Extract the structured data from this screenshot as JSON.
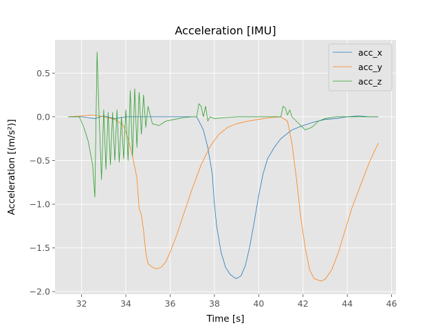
{
  "chart_data": {
    "type": "line",
    "title": "Acceleration [IMU]",
    "xlabel": "Time [s]",
    "ylabel": "Acceleration [(m/s²)]",
    "xlim": [
      30.8,
      46.2
    ],
    "ylim": [
      -2.03,
      0.88
    ],
    "x_ticks": [
      32,
      34,
      36,
      38,
      40,
      42,
      44,
      46
    ],
    "x_tick_labels": [
      "32",
      "34",
      "36",
      "38",
      "40",
      "42",
      "44",
      "46"
    ],
    "y_ticks": [
      0.5,
      0.0,
      -0.5,
      -1.0,
      -1.5,
      -2.0
    ],
    "y_tick_labels": [
      "0.5",
      "0.0",
      "−0.5",
      "−1.0",
      "−1.5",
      "−2.0"
    ],
    "grid": true,
    "legend_position": "top-right",
    "series": [
      {
        "name": "acc_x",
        "color": "#1f77b4",
        "points": [
          [
            31.4,
            0.0
          ],
          [
            32.0,
            0.0
          ],
          [
            32.6,
            -0.02
          ],
          [
            33.0,
            0.01
          ],
          [
            33.5,
            -0.02
          ],
          [
            34.0,
            0.0
          ],
          [
            35.0,
            0.0
          ],
          [
            36.0,
            0.0
          ],
          [
            36.8,
            0.0
          ],
          [
            37.2,
            0.0
          ],
          [
            37.5,
            -0.15
          ],
          [
            37.7,
            -0.35
          ],
          [
            37.9,
            -0.65
          ],
          [
            38.0,
            -1.0
          ],
          [
            38.1,
            -1.25
          ],
          [
            38.3,
            -1.55
          ],
          [
            38.5,
            -1.72
          ],
          [
            38.7,
            -1.8
          ],
          [
            38.9,
            -1.84
          ],
          [
            39.0,
            -1.85
          ],
          [
            39.2,
            -1.82
          ],
          [
            39.4,
            -1.7
          ],
          [
            39.6,
            -1.48
          ],
          [
            39.8,
            -1.2
          ],
          [
            40.0,
            -0.9
          ],
          [
            40.2,
            -0.65
          ],
          [
            40.4,
            -0.48
          ],
          [
            40.7,
            -0.35
          ],
          [
            41.0,
            -0.25
          ],
          [
            41.5,
            -0.15
          ],
          [
            42.0,
            -0.1
          ],
          [
            42.5,
            -0.06
          ],
          [
            43.0,
            -0.03
          ],
          [
            43.5,
            -0.02
          ],
          [
            44.0,
            0.0
          ],
          [
            44.5,
            0.01
          ],
          [
            45.0,
            0.0
          ],
          [
            45.4,
            0.0
          ]
        ]
      },
      {
        "name": "acc_y",
        "color": "#ff7f0e",
        "points": [
          [
            31.4,
            0.0
          ],
          [
            32.0,
            0.01
          ],
          [
            32.5,
            0.02
          ],
          [
            33.0,
            0.0
          ],
          [
            33.5,
            -0.03
          ],
          [
            33.9,
            -0.1
          ],
          [
            34.1,
            -0.25
          ],
          [
            34.3,
            -0.45
          ],
          [
            34.5,
            -0.7
          ],
          [
            34.6,
            -1.05
          ],
          [
            34.7,
            -1.12
          ],
          [
            34.8,
            -1.3
          ],
          [
            34.9,
            -1.55
          ],
          [
            35.0,
            -1.68
          ],
          [
            35.2,
            -1.72
          ],
          [
            35.4,
            -1.74
          ],
          [
            35.6,
            -1.72
          ],
          [
            35.8,
            -1.66
          ],
          [
            36.0,
            -1.55
          ],
          [
            36.3,
            -1.35
          ],
          [
            36.6,
            -1.12
          ],
          [
            37.0,
            -0.82
          ],
          [
            37.4,
            -0.55
          ],
          [
            37.8,
            -0.34
          ],
          [
            38.2,
            -0.2
          ],
          [
            38.6,
            -0.12
          ],
          [
            39.0,
            -0.08
          ],
          [
            39.5,
            -0.05
          ],
          [
            40.0,
            -0.03
          ],
          [
            40.5,
            -0.01
          ],
          [
            41.0,
            0.0
          ],
          [
            41.3,
            -0.05
          ],
          [
            41.5,
            -0.3
          ],
          [
            41.7,
            -0.7
          ],
          [
            41.9,
            -1.15
          ],
          [
            42.1,
            -1.5
          ],
          [
            42.3,
            -1.75
          ],
          [
            42.5,
            -1.85
          ],
          [
            42.8,
            -1.88
          ],
          [
            43.0,
            -1.86
          ],
          [
            43.3,
            -1.75
          ],
          [
            43.6,
            -1.55
          ],
          [
            43.9,
            -1.3
          ],
          [
            44.2,
            -1.05
          ],
          [
            44.6,
            -0.78
          ],
          [
            45.0,
            -0.52
          ],
          [
            45.4,
            -0.3
          ]
        ]
      },
      {
        "name": "acc_z",
        "color": "#2ca02c",
        "points": [
          [
            31.4,
            0.0
          ],
          [
            31.9,
            0.0
          ],
          [
            32.1,
            -0.12
          ],
          [
            32.3,
            -0.28
          ],
          [
            32.5,
            -0.55
          ],
          [
            32.6,
            -0.92
          ],
          [
            32.7,
            0.74
          ],
          [
            32.8,
            -0.05
          ],
          [
            32.9,
            -0.72
          ],
          [
            33.0,
            0.08
          ],
          [
            33.1,
            -0.6
          ],
          [
            33.2,
            0.05
          ],
          [
            33.3,
            -0.55
          ],
          [
            33.4,
            0.05
          ],
          [
            33.5,
            -0.5
          ],
          [
            33.6,
            0.08
          ],
          [
            33.7,
            -0.52
          ],
          [
            33.8,
            0.0
          ],
          [
            33.9,
            -0.48
          ],
          [
            34.0,
            0.08
          ],
          [
            34.1,
            -0.5
          ],
          [
            34.2,
            0.3
          ],
          [
            34.3,
            -0.45
          ],
          [
            34.4,
            0.32
          ],
          [
            34.5,
            -0.35
          ],
          [
            34.6,
            0.28
          ],
          [
            34.7,
            -0.2
          ],
          [
            34.8,
            0.25
          ],
          [
            34.9,
            -0.12
          ],
          [
            35.0,
            0.12
          ],
          [
            35.2,
            -0.08
          ],
          [
            35.5,
            -0.1
          ],
          [
            35.8,
            -0.05
          ],
          [
            36.2,
            -0.03
          ],
          [
            36.6,
            -0.01
          ],
          [
            37.0,
            0.0
          ],
          [
            37.2,
            0.0
          ],
          [
            37.3,
            0.15
          ],
          [
            37.4,
            0.12
          ],
          [
            37.5,
            0.0
          ],
          [
            37.6,
            0.12
          ],
          [
            37.7,
            -0.05
          ],
          [
            37.8,
            0.0
          ],
          [
            38.0,
            -0.02
          ],
          [
            38.5,
            -0.01
          ],
          [
            39.0,
            0.0
          ],
          [
            39.5,
            0.0
          ],
          [
            40.0,
            0.0
          ],
          [
            40.5,
            0.0
          ],
          [
            41.0,
            0.0
          ],
          [
            41.1,
            0.12
          ],
          [
            41.2,
            0.1
          ],
          [
            41.3,
            0.02
          ],
          [
            41.4,
            0.08
          ],
          [
            41.5,
            0.0
          ],
          [
            41.7,
            -0.05
          ],
          [
            41.9,
            -0.1
          ],
          [
            42.1,
            -0.15
          ],
          [
            42.4,
            -0.12
          ],
          [
            42.7,
            -0.05
          ],
          [
            43.0,
            -0.02
          ],
          [
            43.5,
            0.0
          ],
          [
            44.0,
            0.0
          ],
          [
            44.5,
            0.0
          ],
          [
            45.0,
            0.0
          ],
          [
            45.4,
            0.0
          ]
        ]
      }
    ]
  }
}
